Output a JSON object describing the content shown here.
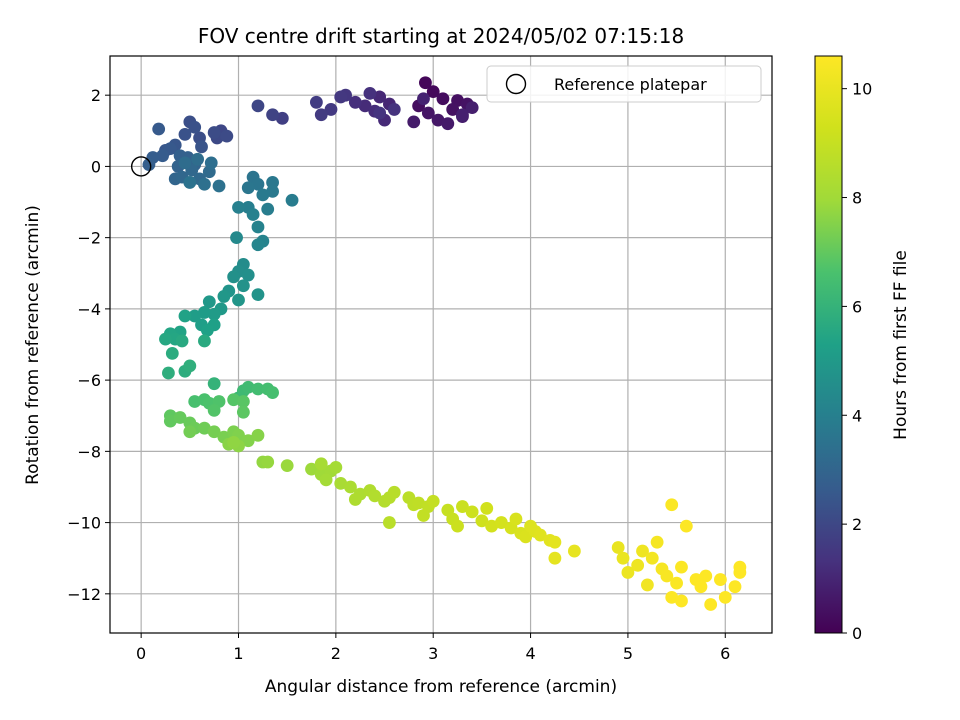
{
  "chart_data": {
    "type": "scatter",
    "title": "FOV centre drift starting at 2024/05/02 07:15:18",
    "xlabel": "Angular distance from reference (arcmin)",
    "ylabel": "Rotation from reference (arcmin)",
    "xlim": [
      -0.32,
      6.48
    ],
    "ylim": [
      -13.1,
      3.1
    ],
    "xticks": [
      0,
      1,
      2,
      3,
      4,
      5,
      6
    ],
    "yticks": [
      2,
      0,
      -2,
      -4,
      -6,
      -8,
      -10,
      -12
    ],
    "grid": true,
    "legend": {
      "placement": "top-right",
      "entries": [
        "Reference platepar"
      ]
    },
    "reference_point": {
      "name": "Reference platepar",
      "x": 0,
      "y": 0
    },
    "colorbar": {
      "label": "Hours from first FF file",
      "colormap": "viridis",
      "range": [
        0,
        10.6
      ],
      "ticks": [
        0,
        2,
        4,
        6,
        8,
        10
      ]
    },
    "points": [
      [
        2.92,
        2.35,
        0.15
      ],
      [
        3.0,
        2.1,
        0.2
      ],
      [
        3.1,
        1.9,
        0.3
      ],
      [
        2.85,
        1.7,
        0.35
      ],
      [
        3.25,
        1.85,
        0.4
      ],
      [
        3.2,
        1.6,
        0.45
      ],
      [
        3.35,
        1.75,
        0.5
      ],
      [
        2.95,
        1.5,
        0.55
      ],
      [
        3.05,
        1.3,
        0.6
      ],
      [
        3.15,
        1.2,
        0.65
      ],
      [
        2.8,
        1.25,
        0.7
      ],
      [
        3.3,
        1.4,
        0.75
      ],
      [
        3.4,
        1.65,
        0.8
      ],
      [
        3.3,
        1.45,
        0.85
      ],
      [
        2.9,
        1.9,
        0.9
      ],
      [
        2.55,
        1.75,
        1.0
      ],
      [
        2.45,
        1.95,
        1.05
      ],
      [
        2.5,
        1.3,
        1.1
      ],
      [
        2.3,
        1.7,
        1.15
      ],
      [
        2.4,
        1.55,
        1.2
      ],
      [
        2.2,
        1.8,
        1.25
      ],
      [
        2.35,
        2.05,
        1.3
      ],
      [
        2.6,
        1.6,
        1.35
      ],
      [
        2.45,
        1.5,
        1.4
      ],
      [
        2.1,
        2.0,
        1.45
      ],
      [
        2.05,
        1.95,
        1.5
      ],
      [
        1.95,
        1.6,
        1.55
      ],
      [
        1.85,
        1.45,
        1.6
      ],
      [
        1.8,
        1.8,
        1.65
      ],
      [
        1.45,
        1.35,
        1.75
      ],
      [
        1.35,
        1.45,
        1.85
      ],
      [
        1.2,
        1.7,
        1.95
      ],
      [
        0.82,
        1.0,
        2.0
      ],
      [
        0.78,
        0.8,
        2.05
      ],
      [
        0.88,
        0.85,
        2.1
      ],
      [
        0.75,
        0.95,
        2.15
      ],
      [
        0.6,
        0.8,
        2.2
      ],
      [
        0.5,
        1.25,
        2.25
      ],
      [
        0.55,
        1.1,
        2.3
      ],
      [
        0.45,
        0.9,
        2.35
      ],
      [
        0.62,
        0.55,
        2.4
      ],
      [
        0.35,
        0.6,
        2.45
      ],
      [
        0.25,
        0.45,
        2.5
      ],
      [
        0.3,
        0.5,
        2.55
      ],
      [
        0.18,
        1.05,
        2.6
      ],
      [
        0.22,
        0.3,
        2.65
      ],
      [
        0.12,
        0.25,
        2.7
      ],
      [
        0.08,
        0.05,
        2.75
      ],
      [
        0.4,
        0.3,
        2.8
      ],
      [
        0.48,
        0.25,
        2.85
      ],
      [
        0.38,
        0.0,
        2.9
      ],
      [
        0.55,
        0.05,
        2.95
      ],
      [
        0.35,
        -0.35,
        3.0
      ],
      [
        0.42,
        -0.3,
        3.05
      ],
      [
        0.52,
        -0.1,
        3.1
      ],
      [
        0.6,
        -0.35,
        3.15
      ],
      [
        0.7,
        -0.15,
        3.2
      ],
      [
        0.45,
        0.1,
        3.25
      ],
      [
        0.58,
        0.2,
        3.3
      ],
      [
        0.72,
        0.1,
        3.35
      ],
      [
        0.65,
        -0.5,
        3.4
      ],
      [
        0.8,
        -0.55,
        3.45
      ],
      [
        0.5,
        -0.45,
        3.5
      ],
      [
        1.15,
        -0.3,
        3.55
      ],
      [
        1.2,
        -0.5,
        3.6
      ],
      [
        1.1,
        -0.6,
        3.65
      ],
      [
        1.35,
        -0.45,
        3.7
      ],
      [
        1.35,
        -0.7,
        3.75
      ],
      [
        1.25,
        -0.8,
        3.8
      ],
      [
        1.55,
        -0.95,
        3.85
      ],
      [
        1.3,
        -1.2,
        3.9
      ],
      [
        1.1,
        -1.15,
        3.95
      ],
      [
        1.0,
        -1.15,
        4.0
      ],
      [
        1.15,
        -1.35,
        4.05
      ],
      [
        1.2,
        -1.7,
        4.1
      ],
      [
        1.25,
        -2.1,
        4.15
      ],
      [
        1.2,
        -2.2,
        4.2
      ],
      [
        0.98,
        -2.0,
        4.35
      ],
      [
        1.05,
        -2.75,
        4.5
      ],
      [
        1.0,
        -2.95,
        4.55
      ],
      [
        1.1,
        -3.05,
        4.6
      ],
      [
        0.95,
        -3.1,
        4.65
      ],
      [
        1.05,
        -3.35,
        4.7
      ],
      [
        1.2,
        -3.6,
        4.75
      ],
      [
        0.9,
        -3.5,
        4.8
      ],
      [
        1.0,
        -3.75,
        4.85
      ],
      [
        0.85,
        -3.65,
        4.9
      ],
      [
        0.7,
        -3.8,
        4.95
      ],
      [
        0.82,
        -4.0,
        5.0
      ],
      [
        0.75,
        -4.15,
        5.05
      ],
      [
        0.65,
        -4.1,
        5.1
      ],
      [
        0.55,
        -4.2,
        5.15
      ],
      [
        0.62,
        -4.45,
        5.2
      ],
      [
        0.75,
        -4.45,
        5.25
      ],
      [
        0.68,
        -4.6,
        5.3
      ],
      [
        0.45,
        -4.2,
        5.35
      ],
      [
        0.4,
        -4.65,
        5.4
      ],
      [
        0.3,
        -4.7,
        5.45
      ],
      [
        0.35,
        -4.85,
        5.5
      ],
      [
        0.25,
        -4.85,
        5.55
      ],
      [
        0.42,
        -4.9,
        5.6
      ],
      [
        0.65,
        -4.9,
        5.65
      ],
      [
        0.32,
        -5.25,
        5.7
      ],
      [
        0.45,
        -5.75,
        5.75
      ],
      [
        0.28,
        -5.8,
        5.8
      ],
      [
        0.5,
        -5.6,
        5.85
      ],
      [
        0.75,
        -6.1,
        6.0
      ],
      [
        1.0,
        -6.5,
        6.2
      ],
      [
        1.05,
        -6.3,
        6.3
      ],
      [
        1.1,
        -6.2,
        6.35
      ],
      [
        1.2,
        -6.25,
        6.4
      ],
      [
        1.3,
        -6.25,
        6.45
      ],
      [
        1.35,
        -6.35,
        6.5
      ],
      [
        0.55,
        -6.6,
        6.55
      ],
      [
        0.65,
        -6.55,
        6.6
      ],
      [
        0.7,
        -6.65,
        6.65
      ],
      [
        0.8,
        -6.6,
        6.7
      ],
      [
        0.75,
        -6.85,
        6.75
      ],
      [
        0.95,
        -6.55,
        6.8
      ],
      [
        1.05,
        -6.6,
        6.85
      ],
      [
        1.05,
        -6.9,
        6.9
      ],
      [
        0.3,
        -7.0,
        6.95
      ],
      [
        0.3,
        -7.15,
        7.0
      ],
      [
        0.4,
        -7.05,
        7.05
      ],
      [
        0.5,
        -7.2,
        7.1
      ],
      [
        0.55,
        -7.35,
        7.15
      ],
      [
        0.65,
        -7.35,
        7.2
      ],
      [
        0.5,
        -7.45,
        7.25
      ],
      [
        0.75,
        -7.45,
        7.3
      ],
      [
        0.85,
        -7.6,
        7.35
      ],
      [
        0.95,
        -7.45,
        7.4
      ],
      [
        1.0,
        -7.55,
        7.45
      ],
      [
        1.1,
        -7.7,
        7.5
      ],
      [
        1.2,
        -7.55,
        7.55
      ],
      [
        0.9,
        -7.8,
        7.6
      ],
      [
        1.0,
        -7.85,
        7.65
      ],
      [
        0.95,
        -7.75,
        7.7
      ],
      [
        1.25,
        -8.3,
        7.75
      ],
      [
        1.3,
        -8.3,
        7.8
      ],
      [
        1.5,
        -8.4,
        7.85
      ],
      [
        1.75,
        -8.5,
        7.9
      ],
      [
        1.85,
        -8.65,
        7.95
      ],
      [
        1.95,
        -8.55,
        8.0
      ],
      [
        1.9,
        -8.8,
        8.05
      ],
      [
        2.0,
        -8.45,
        8.1
      ],
      [
        1.85,
        -8.35,
        8.15
      ],
      [
        2.05,
        -8.9,
        8.2
      ],
      [
        2.15,
        -9.0,
        8.25
      ],
      [
        2.25,
        -9.2,
        8.3
      ],
      [
        2.2,
        -9.35,
        8.35
      ],
      [
        2.35,
        -9.1,
        8.4
      ],
      [
        2.4,
        -9.25,
        8.45
      ],
      [
        2.5,
        -9.4,
        8.5
      ],
      [
        2.55,
        -9.3,
        8.55
      ],
      [
        2.6,
        -9.15,
        8.6
      ],
      [
        2.55,
        -10.0,
        8.65
      ],
      [
        2.75,
        -9.3,
        8.7
      ],
      [
        2.8,
        -9.5,
        8.75
      ],
      [
        2.85,
        -9.45,
        8.8
      ],
      [
        2.95,
        -9.55,
        8.85
      ],
      [
        2.9,
        -9.8,
        8.9
      ],
      [
        3.0,
        -9.4,
        8.95
      ],
      [
        3.15,
        -9.65,
        9.0
      ],
      [
        3.2,
        -9.9,
        9.05
      ],
      [
        3.3,
        -9.55,
        9.1
      ],
      [
        3.25,
        -10.1,
        9.15
      ],
      [
        3.4,
        -9.7,
        9.2
      ],
      [
        3.5,
        -9.95,
        9.25
      ],
      [
        3.55,
        -9.6,
        9.3
      ],
      [
        3.6,
        -10.1,
        9.35
      ],
      [
        3.7,
        -10.0,
        9.4
      ],
      [
        3.8,
        -10.15,
        9.45
      ],
      [
        3.85,
        -9.9,
        9.5
      ],
      [
        3.9,
        -10.3,
        9.55
      ],
      [
        3.95,
        -10.4,
        9.6
      ],
      [
        4.0,
        -10.1,
        9.65
      ],
      [
        4.05,
        -10.25,
        9.7
      ],
      [
        4.1,
        -10.35,
        9.75
      ],
      [
        4.2,
        -10.5,
        9.8
      ],
      [
        4.25,
        -10.55,
        9.85
      ],
      [
        4.25,
        -11.0,
        9.9
      ],
      [
        4.45,
        -10.8,
        9.95
      ],
      [
        4.9,
        -10.7,
        10.0
      ],
      [
        4.95,
        -11.0,
        10.05
      ],
      [
        5.0,
        -11.4,
        10.1
      ],
      [
        5.1,
        -11.2,
        10.15
      ],
      [
        5.15,
        -10.8,
        10.2
      ],
      [
        5.2,
        -11.75,
        10.25
      ],
      [
        5.25,
        -11.0,
        10.3
      ],
      [
        5.3,
        -10.55,
        10.35
      ],
      [
        5.35,
        -11.3,
        10.4
      ],
      [
        5.4,
        -11.5,
        10.45
      ],
      [
        5.45,
        -9.5,
        10.5
      ],
      [
        5.5,
        -11.7,
        10.52
      ],
      [
        5.55,
        -11.25,
        10.55
      ],
      [
        5.6,
        -10.1,
        10.57
      ],
      [
        5.45,
        -12.1,
        10.58
      ],
      [
        5.55,
        -12.2,
        10.6
      ],
      [
        5.7,
        -11.6,
        10.6
      ],
      [
        5.8,
        -11.5,
        10.6
      ],
      [
        5.75,
        -11.8,
        10.6
      ],
      [
        5.85,
        -12.3,
        10.6
      ],
      [
        5.95,
        -11.6,
        10.6
      ],
      [
        6.0,
        -12.1,
        10.6
      ],
      [
        6.1,
        -11.8,
        10.6
      ],
      [
        6.15,
        -11.4,
        10.6
      ],
      [
        6.15,
        -11.25,
        10.6
      ]
    ]
  }
}
